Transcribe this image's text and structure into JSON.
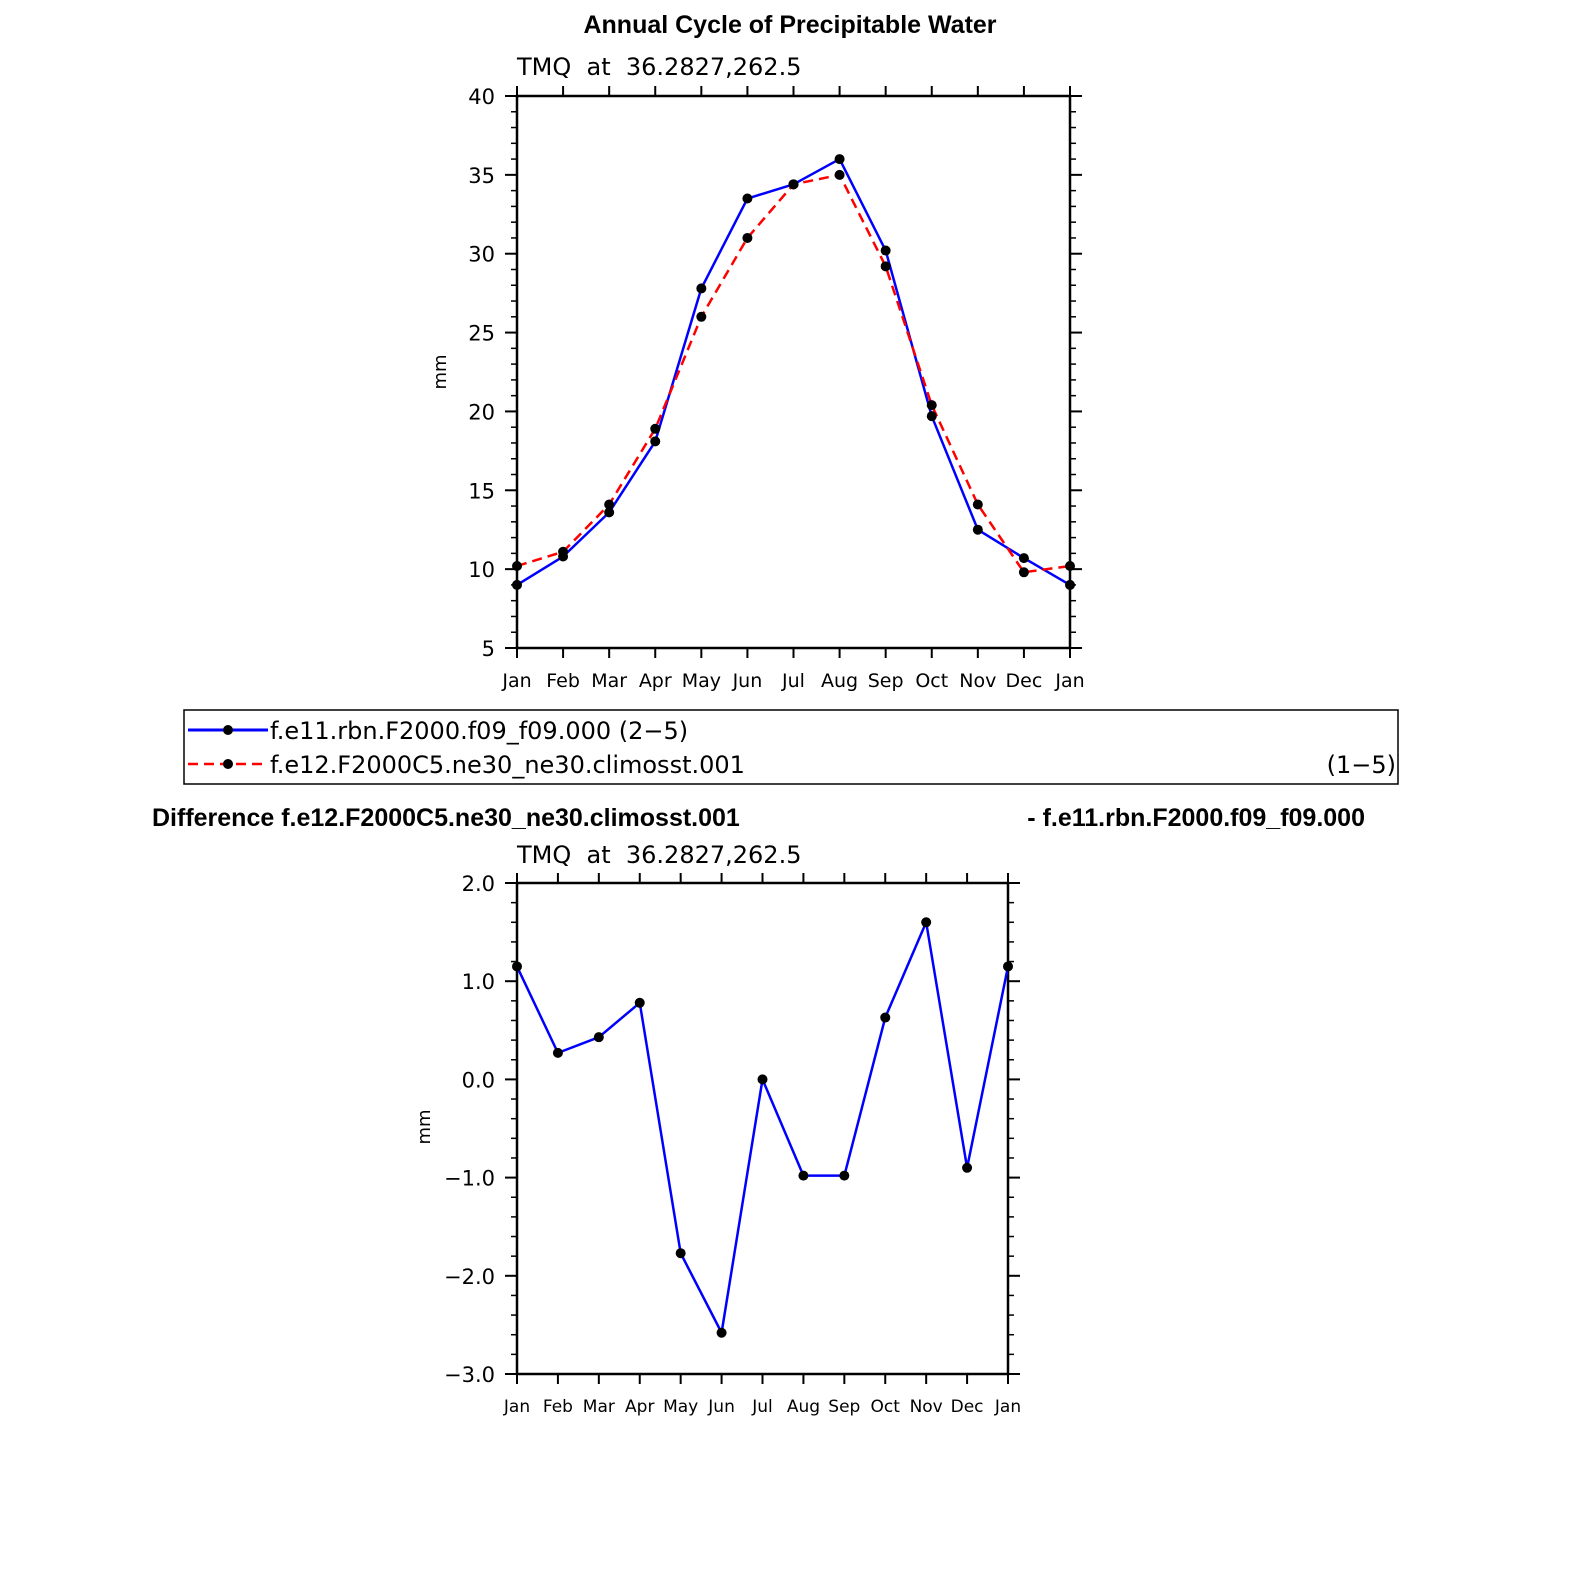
{
  "figure": {
    "top_title": "Annual Cycle of Precipitable Water",
    "diff_title_left": "Difference f.e12.F2000C5.ne30_ne30.climosst.001",
    "diff_title_right": "- f.e11.rbn.F2000.f09_f09.000"
  },
  "legend": {
    "entries": [
      {
        "label": "f.e11.rbn.F2000.f09_f09.000 (2−5)",
        "suffix": ""
      },
      {
        "label": "f.e12.F2000C5.ne30_ne30.climosst.001",
        "suffix": "(1−5)"
      }
    ]
  },
  "colors": {
    "series1": "#0000ff",
    "series2": "#ff0000",
    "marker": "#000000"
  },
  "chart_data": [
    {
      "type": "line",
      "title": "Annual Cycle of Precipitable Water",
      "subtitle": "TMQ  at  36.2827,262.5",
      "ylabel": "mm",
      "xlabel": "",
      "categories": [
        "Jan",
        "Feb",
        "Mar",
        "Apr",
        "May",
        "Jun",
        "Jul",
        "Aug",
        "Sep",
        "Oct",
        "Nov",
        "Dec",
        "Jan"
      ],
      "ylim": [
        5,
        40
      ],
      "yticks": [
        "5",
        "10",
        "15",
        "20",
        "25",
        "30",
        "35",
        "40"
      ],
      "series": [
        {
          "name": "f.e11.rbn.F2000.f09_f09.000 (2−5)",
          "style": "solid",
          "values": [
            9.0,
            10.8,
            13.6,
            18.1,
            27.8,
            33.5,
            34.4,
            36.0,
            30.2,
            19.7,
            12.5,
            10.7,
            9.0
          ]
        },
        {
          "name": "f.e12.F2000C5.ne30_ne30.climosst.001",
          "style": "dashed",
          "values": [
            10.2,
            11.1,
            14.1,
            18.9,
            26.0,
            31.0,
            34.4,
            35.0,
            29.2,
            20.4,
            14.1,
            9.8,
            10.2
          ]
        }
      ]
    },
    {
      "type": "line",
      "title": "Difference f.e12.F2000C5.ne30_ne30.climosst.001 - f.e11.rbn.F2000.f09_f09.000",
      "subtitle": "TMQ  at  36.2827,262.5",
      "ylabel": "mm",
      "xlabel": "",
      "categories": [
        "Jan",
        "Feb",
        "Mar",
        "Apr",
        "May",
        "Jun",
        "Jul",
        "Aug",
        "Sep",
        "Oct",
        "Nov",
        "Dec",
        "Jan"
      ],
      "ylim": [
        -3.0,
        2.0
      ],
      "yticks": [
        "−3.0",
        "−2.0",
        "−1.0",
        "0.0",
        "1.0",
        "2.0"
      ],
      "series": [
        {
          "style": "solid",
          "values": [
            1.15,
            0.27,
            0.43,
            0.78,
            -1.77,
            -2.58,
            0.0,
            -0.98,
            -0.98,
            0.63,
            1.6,
            -0.9,
            1.15
          ]
        }
      ]
    }
  ]
}
